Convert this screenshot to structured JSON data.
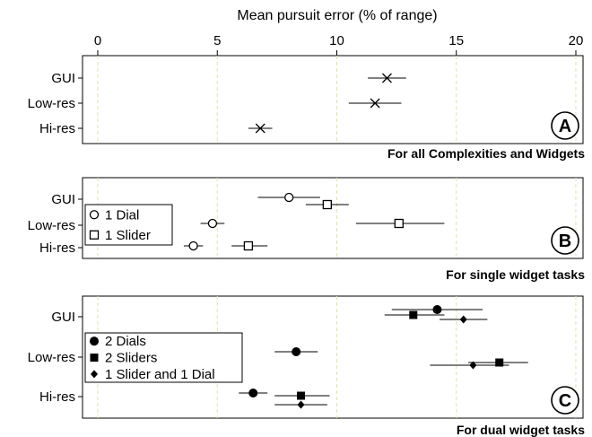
{
  "chart_data": {
    "type": "scatter",
    "title": "Mean pursuit error (% of range)",
    "xlim": [
      0,
      20
    ],
    "xticks": [
      "0",
      "5",
      "10",
      "15",
      "20"
    ],
    "grid": "vertical dashed",
    "panels": [
      {
        "letter": "A",
        "caption": "For all Complexities and Widgets",
        "categories": [
          "GUI",
          "Low-res",
          "Hi-res"
        ],
        "legend": [],
        "series": [
          {
            "name": "",
            "marker": "x",
            "points": [
              {
                "category": "GUI",
                "mean": 12.1,
                "low": 11.3,
                "high": 12.9
              },
              {
                "category": "Low-res",
                "mean": 11.6,
                "low": 10.5,
                "high": 12.7
              },
              {
                "category": "Hi-res",
                "mean": 6.8,
                "low": 6.3,
                "high": 7.3
              }
            ]
          }
        ]
      },
      {
        "letter": "B",
        "caption": "For single widget tasks",
        "categories": [
          "GUI",
          "Low-res",
          "Hi-res"
        ],
        "legend": [
          "1 Dial",
          "1 Slider"
        ],
        "series": [
          {
            "name": "1 Dial",
            "marker": "circle-open",
            "points": [
              {
                "category": "GUI",
                "mean": 8.0,
                "low": 6.7,
                "high": 9.3
              },
              {
                "category": "Low-res",
                "mean": 4.8,
                "low": 4.3,
                "high": 5.3
              },
              {
                "category": "Hi-res",
                "mean": 4.0,
                "low": 3.6,
                "high": 4.4
              }
            ]
          },
          {
            "name": "1 Slider",
            "marker": "square-open",
            "points": [
              {
                "category": "GUI",
                "mean": 9.6,
                "low": 8.7,
                "high": 10.5
              },
              {
                "category": "Low-res",
                "mean": 12.6,
                "low": 10.8,
                "high": 14.5
              },
              {
                "category": "Hi-res",
                "mean": 6.3,
                "low": 5.6,
                "high": 7.1
              }
            ]
          }
        ]
      },
      {
        "letter": "C",
        "caption": "For dual widget tasks",
        "categories": [
          "GUI",
          "Low-res",
          "Hi-res"
        ],
        "legend": [
          "2 Dials",
          "2 Sliders",
          "1 Slider and 1 Dial"
        ],
        "series": [
          {
            "name": "2 Dials",
            "marker": "circle-filled",
            "points": [
              {
                "category": "GUI",
                "mean": 14.2,
                "low": 12.3,
                "high": 16.1
              },
              {
                "category": "Low-res",
                "mean": 8.3,
                "low": 7.4,
                "high": 9.2
              },
              {
                "category": "Hi-res",
                "mean": 6.5,
                "low": 5.9,
                "high": 7.1
              }
            ]
          },
          {
            "name": "2 Sliders",
            "marker": "square-filled",
            "points": [
              {
                "category": "GUI",
                "mean": 13.2,
                "low": 12.0,
                "high": 14.5
              },
              {
                "category": "Low-res",
                "mean": 16.8,
                "low": 15.5,
                "high": 18.0
              },
              {
                "category": "Hi-res",
                "mean": 8.5,
                "low": 7.4,
                "high": 9.7
              }
            ]
          },
          {
            "name": "1 Slider and 1 Dial",
            "marker": "diamond-filled",
            "points": [
              {
                "category": "GUI",
                "mean": 15.3,
                "low": 14.3,
                "high": 16.3
              },
              {
                "category": "Low-res",
                "mean": 15.7,
                "low": 13.9,
                "high": 17.2
              },
              {
                "category": "Hi-res",
                "mean": 8.5,
                "low": 7.4,
                "high": 9.6
              }
            ]
          }
        ]
      }
    ]
  }
}
